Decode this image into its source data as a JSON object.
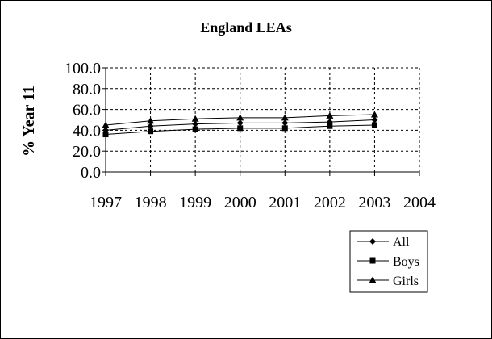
{
  "chart_data": {
    "type": "line",
    "title": "England LEAs",
    "xlabel": "",
    "ylabel": "% Year 11",
    "x": [
      1997,
      1998,
      1999,
      2000,
      2001,
      2002,
      2003
    ],
    "x_ticks": [
      "1997",
      "1998",
      "1999",
      "2000",
      "2001",
      "2002",
      "2003",
      "2004"
    ],
    "xlim": [
      1997,
      2004
    ],
    "y_ticks": [
      "100.0",
      "80.0",
      "60.0",
      "40.0",
      "20.0",
      "0.0"
    ],
    "ylim": [
      0,
      100
    ],
    "grid": true,
    "legend_position": "bottom-right",
    "series": [
      {
        "name": "All",
        "marker": "diamond",
        "values": [
          40,
          44,
          46,
          47,
          47,
          48,
          50
        ]
      },
      {
        "name": "Boys",
        "marker": "square",
        "values": [
          36,
          39,
          41,
          42,
          42,
          44,
          45
        ]
      },
      {
        "name": "Girls",
        "marker": "triangle",
        "values": [
          45,
          49,
          51,
          52,
          52,
          54,
          55
        ]
      }
    ]
  }
}
